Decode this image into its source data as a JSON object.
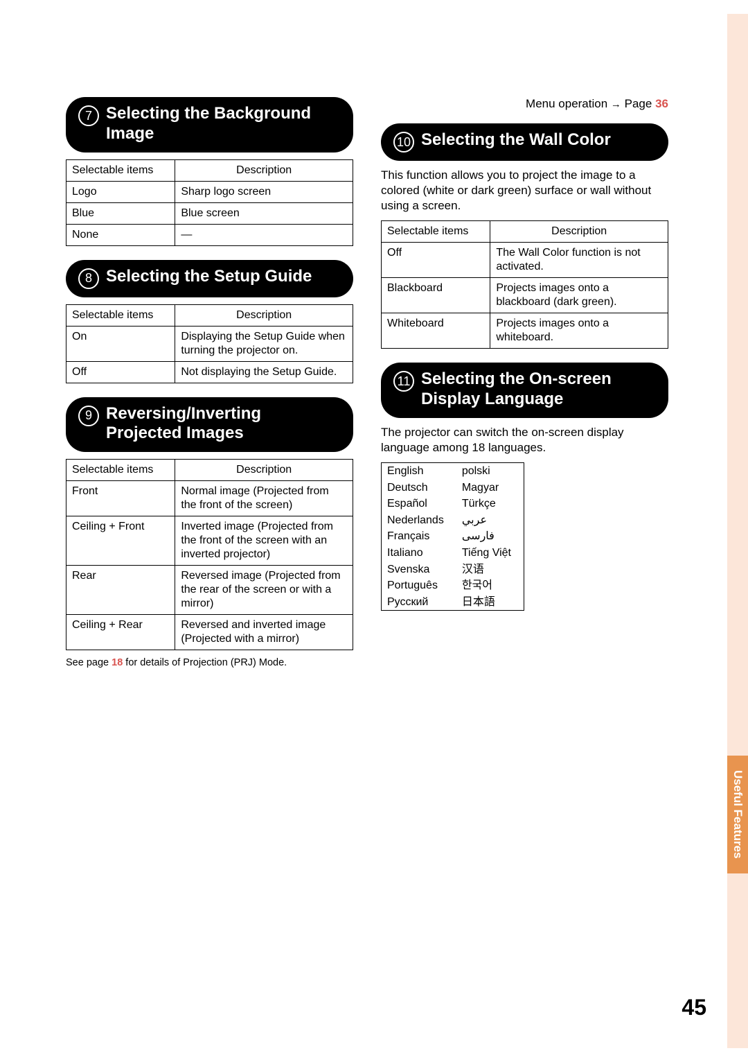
{
  "page_number": "45",
  "tab_label": "Useful\nFeatures",
  "menu_operation": {
    "text": "Menu operation",
    "arrow": "→",
    "page_word": "Page",
    "page_ref": "36"
  },
  "sections": {
    "s7": {
      "num": "7",
      "title": "Selecting the Background Image",
      "table": {
        "header": [
          "Selectable items",
          "Description"
        ],
        "rows": [
          [
            "Logo",
            "Sharp logo screen"
          ],
          [
            "Blue",
            "Blue screen"
          ],
          [
            "None",
            "—"
          ]
        ]
      }
    },
    "s8": {
      "num": "8",
      "title": "Selecting the Setup Guide",
      "table": {
        "header": [
          "Selectable items",
          "Description"
        ],
        "rows": [
          [
            "On",
            "Displaying the Setup Guide when turning the projector on."
          ],
          [
            "Off",
            "Not displaying the Setup Guide."
          ]
        ]
      }
    },
    "s9": {
      "num": "9",
      "title": "Reversing/Inverting Projected Images",
      "table": {
        "header": [
          "Selectable items",
          "Description"
        ],
        "rows": [
          [
            "Front",
            "Normal image (Projected from the front of the screen)"
          ],
          [
            "Ceiling + Front",
            "Inverted image (Projected from the front of the screen with an inverted projector)"
          ],
          [
            "Rear",
            "Reversed image (Projected from the rear of the screen or with a mirror)"
          ],
          [
            "Ceiling + Rear",
            "Reversed and inverted image (Projected with a mirror)"
          ]
        ]
      },
      "footnote": {
        "pre": "See page ",
        "page_ref": "18",
        "post": " for details of Projection (PRJ) Mode."
      }
    },
    "s10": {
      "num": "10",
      "title": "Selecting the Wall Color",
      "intro": "This function allows you to project the image to a colored (white or dark green) surface or wall without using a screen.",
      "table": {
        "header": [
          "Selectable items",
          "Description"
        ],
        "rows": [
          [
            "Off",
            "The Wall Color function is not activated."
          ],
          [
            "Blackboard",
            "Projects images onto a blackboard (dark green)."
          ],
          [
            "Whiteboard",
            "Projects images onto a whiteboard."
          ]
        ]
      }
    },
    "s11": {
      "num": "11",
      "title": "Selecting the On-screen Display Language",
      "intro": "The projector can switch the on-screen display language among 18 languages.",
      "languages": {
        "col1": [
          "English",
          "Deutsch",
          "Español",
          "Nederlands",
          "Français",
          "Italiano",
          "Svenska",
          "Português",
          "Русский"
        ],
        "col2": [
          "polski",
          "Magyar",
          "Türkçe",
          "عربي",
          "فارسی",
          "Tiếng Việt",
          "汉语",
          "한국어",
          "日本語"
        ]
      }
    }
  }
}
